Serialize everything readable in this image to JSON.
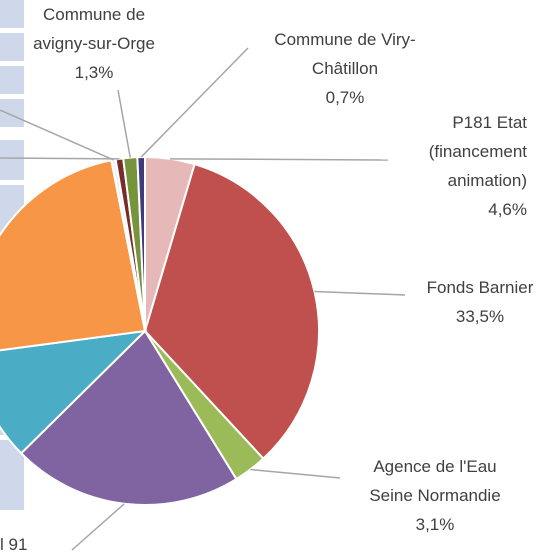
{
  "chart_data": {
    "type": "pie",
    "categories": [
      "P181 Etat\n(financement\nanimation)",
      "Fonds Barnier",
      "Agence de l'Eau\nSeine Normandie",
      "l 91",
      null,
      null,
      null,
      null,
      "Commune de\navigny-sur-Orge",
      "Commune de Viry-\nChâtillon"
    ],
    "values": [
      4.6,
      33.5,
      3.1,
      21.4,
      10.3,
      24.0,
      0.4,
      0.7,
      1.3,
      0.7
    ],
    "value_labels": [
      "4,6%",
      "33,5%",
      "3,1%",
      null,
      null,
      null,
      null,
      null,
      "1,3%",
      "0,7%"
    ],
    "colors": [
      "#e6b9b8",
      "#c0504d",
      "#9bbb59",
      "#8064a2",
      "#4bacc6",
      "#f79646",
      "#f2f2f2",
      "#772c2a",
      "#77933c",
      "#403b7a"
    ]
  }
}
